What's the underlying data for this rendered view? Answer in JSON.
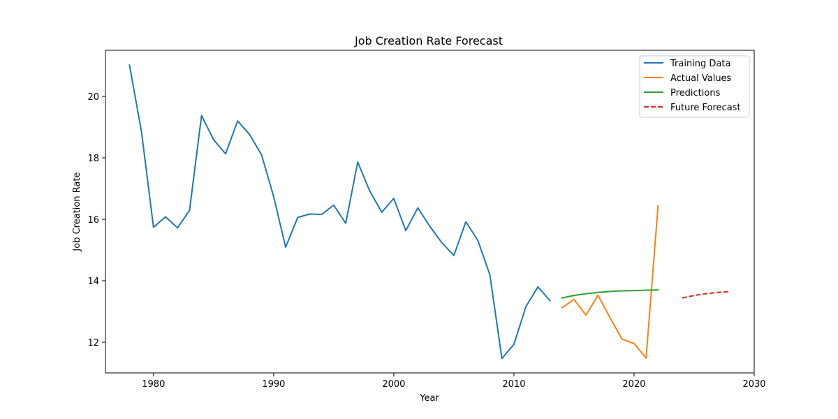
{
  "chart_data": {
    "type": "line",
    "title": "Job Creation Rate Forecast",
    "xlabel": "Year",
    "ylabel": "Job Creation Rate",
    "xlim": [
      1976,
      2030
    ],
    "ylim": [
      11.0,
      21.5
    ],
    "xticks": [
      1980,
      1990,
      2000,
      2010,
      2020,
      2030
    ],
    "yticks": [
      12,
      14,
      16,
      18,
      20
    ],
    "grid": false,
    "legend_position": "top-right",
    "series": [
      {
        "name": "Training Data",
        "color": "#1f77b4",
        "style": "solid",
        "x": [
          1978,
          1979,
          1980,
          1981,
          1982,
          1983,
          1984,
          1985,
          1986,
          1987,
          1988,
          1989,
          1990,
          1991,
          1992,
          1993,
          1994,
          1995,
          1996,
          1997,
          1998,
          1999,
          2000,
          2001,
          2002,
          2003,
          2004,
          2005,
          2006,
          2007,
          2008,
          2009,
          2010,
          2011,
          2012,
          2013
        ],
        "y": [
          21.02,
          18.85,
          15.74,
          16.08,
          15.72,
          16.29,
          19.38,
          18.59,
          18.13,
          19.2,
          18.76,
          18.09,
          16.74,
          15.09,
          16.06,
          16.17,
          16.16,
          16.46,
          15.87,
          17.86,
          16.92,
          16.23,
          16.68,
          15.63,
          16.37,
          15.77,
          15.24,
          14.82,
          15.92,
          15.31,
          14.19,
          11.47,
          11.93,
          13.16,
          13.8,
          13.35
        ]
      },
      {
        "name": "Actual Values",
        "color": "#ff7f0e",
        "style": "solid",
        "x": [
          2014,
          2015,
          2016,
          2017,
          2018,
          2019,
          2020,
          2021,
          2022
        ],
        "y": [
          13.12,
          13.39,
          12.88,
          13.53,
          12.8,
          12.1,
          11.96,
          11.48,
          16.44
        ]
      },
      {
        "name": "Predictions",
        "color": "#2ca02c",
        "style": "solid",
        "x": [
          2014,
          2015,
          2016,
          2017,
          2018,
          2019,
          2020,
          2021,
          2022
        ],
        "y": [
          13.44,
          13.52,
          13.58,
          13.62,
          13.65,
          13.67,
          13.68,
          13.69,
          13.7
        ]
      },
      {
        "name": "Future Forecast",
        "color": "#d62728",
        "style": "dashed",
        "x": [
          2024,
          2025,
          2026,
          2027,
          2028
        ],
        "y": [
          13.44,
          13.52,
          13.58,
          13.62,
          13.65
        ]
      }
    ]
  }
}
